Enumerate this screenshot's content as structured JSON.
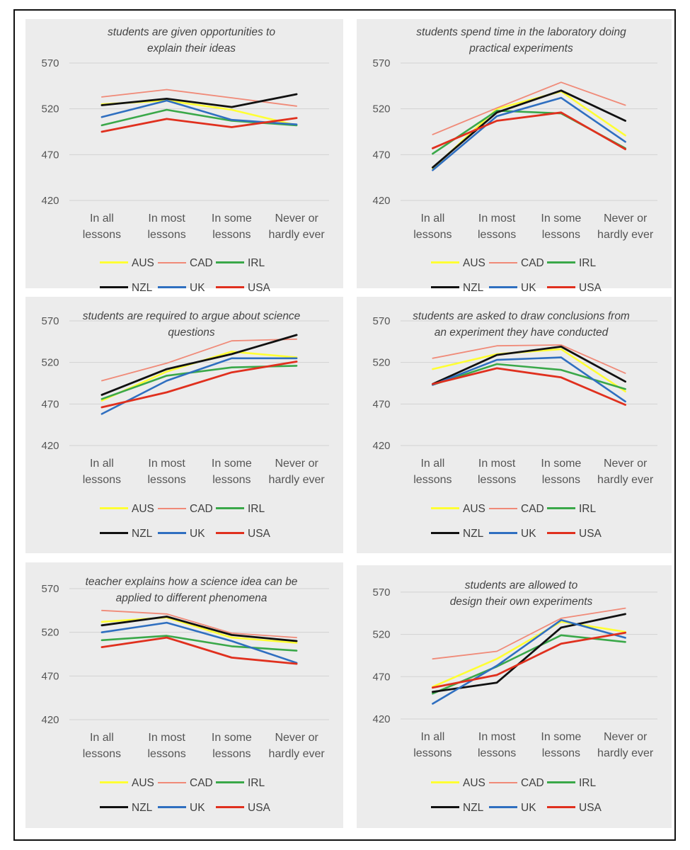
{
  "chart_data": [
    {
      "type": "line",
      "title": "students are given opportunities to explain their ideas",
      "title_lines": [
        "students are given opportunities to",
        "explain their ideas"
      ],
      "categories": [
        "In all lessons",
        "In most lessons",
        "In some lessons",
        "Never or hardly ever"
      ],
      "ylim": [
        420,
        570
      ],
      "yticks": [
        420,
        470,
        520,
        570
      ],
      "legend_position": "bottom",
      "series": [
        {
          "name": "AUS",
          "color": "#ffff33",
          "values": [
            525,
            529,
            519,
            502
          ]
        },
        {
          "name": "CAD",
          "color": "#f08a78",
          "values": [
            533,
            541,
            532,
            523
          ]
        },
        {
          "name": "IRL",
          "color": "#3aa849",
          "values": [
            502,
            519,
            507,
            502
          ]
        },
        {
          "name": "NZL",
          "color": "#111111",
          "values": [
            524,
            531,
            522,
            536
          ]
        },
        {
          "name": "UK",
          "color": "#2f6fc0",
          "values": [
            511,
            529,
            508,
            503
          ]
        },
        {
          "name": "USA",
          "color": "#e0301e",
          "values": [
            495,
            509,
            500,
            510
          ]
        }
      ]
    },
    {
      "type": "line",
      "title": "students spend time in the laboratory doing practical experiments",
      "title_lines": [
        "students spend time in the laboratory doing",
        "practical experiments"
      ],
      "categories": [
        "In all lessons",
        "In most lessons",
        "In some lessons",
        "Never or hardly ever"
      ],
      "ylim": [
        420,
        570
      ],
      "yticks": [
        420,
        470,
        520,
        570
      ],
      "legend_position": "bottom",
      "series": [
        {
          "name": "AUS",
          "color": "#ffff33",
          "values": [
            455,
            520,
            539,
            491
          ]
        },
        {
          "name": "CAD",
          "color": "#f08a78",
          "values": [
            492,
            521,
            549,
            524
          ]
        },
        {
          "name": "IRL",
          "color": "#3aa849",
          "values": [
            471,
            518,
            515,
            477
          ]
        },
        {
          "name": "NZL",
          "color": "#111111",
          "values": [
            456,
            516,
            540,
            507
          ]
        },
        {
          "name": "UK",
          "color": "#2f6fc0",
          "values": [
            453,
            512,
            532,
            484
          ]
        },
        {
          "name": "USA",
          "color": "#e0301e",
          "values": [
            477,
            507,
            516,
            476
          ]
        }
      ]
    },
    {
      "type": "line",
      "title": "students are required to argue about science questions",
      "title_lines": [
        "students are required to argue about science",
        "questions"
      ],
      "categories": [
        "In all lessons",
        "In most lessons",
        "In some lessons",
        "Never or hardly ever"
      ],
      "ylim": [
        420,
        570
      ],
      "yticks": [
        420,
        470,
        520,
        570
      ],
      "legend_position": "bottom",
      "series": [
        {
          "name": "AUS",
          "color": "#ffff33",
          "values": [
            474,
            509,
            533,
            526
          ]
        },
        {
          "name": "CAD",
          "color": "#f08a78",
          "values": [
            498,
            519,
            546,
            548
          ]
        },
        {
          "name": "IRL",
          "color": "#3aa849",
          "values": [
            476,
            504,
            514,
            516
          ]
        },
        {
          "name": "NZL",
          "color": "#111111",
          "values": [
            481,
            512,
            530,
            553
          ]
        },
        {
          "name": "UK",
          "color": "#2f6fc0",
          "values": [
            458,
            498,
            525,
            525
          ]
        },
        {
          "name": "USA",
          "color": "#e0301e",
          "values": [
            466,
            484,
            508,
            521
          ]
        }
      ]
    },
    {
      "type": "line",
      "title": "students are asked to draw conclusions from an experiment they have conducted",
      "title_lines": [
        "students are asked to draw conclusions from",
        "an experiment they have conducted"
      ],
      "categories": [
        "In all lessons",
        "In most lessons",
        "In some lessons",
        "Never or hardly ever"
      ],
      "ylim": [
        420,
        570
      ],
      "yticks": [
        420,
        470,
        520,
        570
      ],
      "legend_position": "bottom",
      "series": [
        {
          "name": "AUS",
          "color": "#ffff33",
          "values": [
            512,
            530,
            536,
            485
          ]
        },
        {
          "name": "CAD",
          "color": "#f08a78",
          "values": [
            525,
            540,
            541,
            507
          ]
        },
        {
          "name": "IRL",
          "color": "#3aa849",
          "values": [
            493,
            518,
            511,
            488
          ]
        },
        {
          "name": "NZL",
          "color": "#111111",
          "values": [
            494,
            529,
            539,
            497
          ]
        },
        {
          "name": "UK",
          "color": "#2f6fc0",
          "values": [
            493,
            523,
            526,
            473
          ]
        },
        {
          "name": "USA",
          "color": "#e0301e",
          "values": [
            494,
            513,
            502,
            469
          ]
        }
      ]
    },
    {
      "type": "line",
      "title": "teacher explains how a science idea can be applied to different phenomena",
      "title_lines": [
        "teacher explains how a science idea can be",
        "applied to different phenomena"
      ],
      "categories": [
        "In all lessons",
        "In most lessons",
        "In some lessons",
        "Never or hardly ever"
      ],
      "ylim": [
        420,
        570
      ],
      "yticks": [
        420,
        470,
        520,
        570
      ],
      "legend_position": "bottom",
      "series": [
        {
          "name": "AUS",
          "color": "#ffff33",
          "values": [
            532,
            537,
            514,
            508
          ]
        },
        {
          "name": "CAD",
          "color": "#f08a78",
          "values": [
            545,
            541,
            519,
            514
          ]
        },
        {
          "name": "IRL",
          "color": "#3aa849",
          "values": [
            511,
            516,
            504,
            499
          ]
        },
        {
          "name": "NZL",
          "color": "#111111",
          "values": [
            528,
            538,
            517,
            510
          ]
        },
        {
          "name": "UK",
          "color": "#2f6fc0",
          "values": [
            520,
            531,
            510,
            485
          ]
        },
        {
          "name": "USA",
          "color": "#e0301e",
          "values": [
            503,
            514,
            491,
            484
          ]
        }
      ]
    },
    {
      "type": "line",
      "title": "students are allowed to design their own experiments",
      "title_lines": [
        "students are allowed to",
        "design their own experiments"
      ],
      "categories": [
        "In all lessons",
        "In most lessons",
        "In some lessons",
        "Never or hardly ever"
      ],
      "ylim": [
        420,
        590
      ],
      "yticks": [
        420,
        470,
        520,
        570
      ],
      "legend_position": "bottom",
      "series": [
        {
          "name": "AUS",
          "color": "#ffff33",
          "values": [
            458,
            491,
            535,
            523
          ]
        },
        {
          "name": "CAD",
          "color": "#f08a78",
          "values": [
            491,
            500,
            539,
            551
          ]
        },
        {
          "name": "IRL",
          "color": "#3aa849",
          "values": [
            450,
            482,
            519,
            511
          ]
        },
        {
          "name": "NZL",
          "color": "#111111",
          "values": [
            452,
            463,
            528,
            544
          ]
        },
        {
          "name": "UK",
          "color": "#2f6fc0",
          "values": [
            438,
            483,
            537,
            516
          ]
        },
        {
          "name": "USA",
          "color": "#e0301e",
          "values": [
            457,
            472,
            509,
            522
          ]
        }
      ]
    }
  ]
}
